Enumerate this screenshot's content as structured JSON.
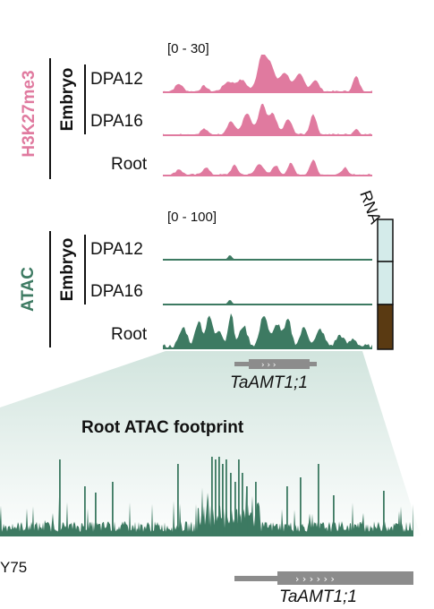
{
  "colors": {
    "h3k27me3": "#e07a9f",
    "atac": "#3d7a62",
    "rna_low": "#d4ebea",
    "rna_high": "#5a3a12",
    "gene": "#8c8c8c",
    "zoom_fill": "#cfe3dc"
  },
  "h3k27me3": {
    "label": "H3K27me3",
    "range": "[0 - 30]",
    "group": "Embryo",
    "tracks": [
      {
        "name": "DPA12",
        "level": 0.75
      },
      {
        "name": "DPA16",
        "level": 0.5
      },
      {
        "name": "Root",
        "level": 0.25
      }
    ]
  },
  "atac": {
    "label": "ATAC",
    "range": "[0 - 100]",
    "group": "Embryo",
    "tracks": [
      {
        "name": "DPA12",
        "level": 0.05
      },
      {
        "name": "DPA16",
        "level": 0.05
      },
      {
        "name": "Root",
        "level": 1.0
      }
    ]
  },
  "rna": {
    "label": "RNA",
    "levels": [
      0.05,
      0.05,
      1.0
    ]
  },
  "gene": {
    "name": "TaAMT1;1"
  },
  "footprint": {
    "title": "Root ATAC footprint",
    "motif_label": "Y75",
    "gene_name": "TaAMT1;1"
  }
}
